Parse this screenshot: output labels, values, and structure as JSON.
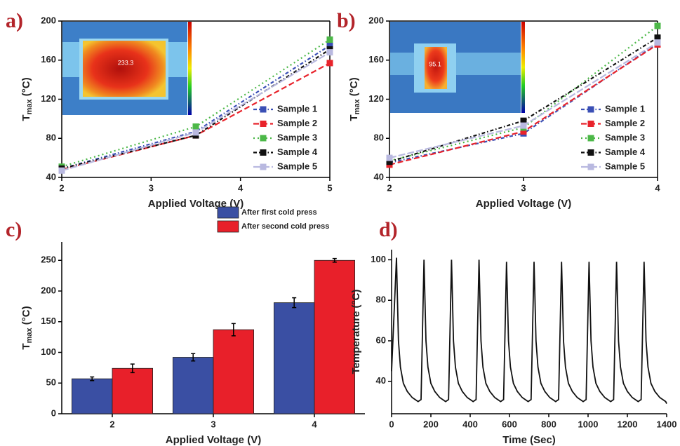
{
  "chart_data": [
    {
      "type": "line",
      "panel": "a)",
      "xlabel": "Applied Voltage (V)",
      "ylabel": {
        "main": "T",
        "sub": "max",
        "unit": " (°C)"
      },
      "x": [
        2,
        3.5,
        5
      ],
      "xlim": [
        2,
        5
      ],
      "xticks": [
        2,
        3,
        4,
        5
      ],
      "ylim": [
        40,
        200
      ],
      "yticks": [
        40,
        80,
        120,
        160,
        200
      ],
      "frame": true,
      "markers": true,
      "legend": "lower right",
      "inset_label": "233.3",
      "series": [
        {
          "name": "Sample 1",
          "color": "#3a4fb5",
          "linestyle": "dashdot",
          "values": [
            49,
            87,
            175
          ]
        },
        {
          "name": "Sample 2",
          "color": "#e8232b",
          "linestyle": "dashed",
          "values": [
            48,
            83,
            157
          ]
        },
        {
          "name": "Sample 3",
          "color": "#4cb848",
          "linestyle": "dotted",
          "values": [
            51,
            92,
            181
          ]
        },
        {
          "name": "Sample 4",
          "color": "#111111",
          "linestyle": "dashdot",
          "values": [
            49,
            83,
            171
          ]
        },
        {
          "name": "Sample 5",
          "color": "#b9b9e0",
          "linestyle": "longdash",
          "values": [
            47,
            86,
            168
          ]
        }
      ]
    },
    {
      "type": "line",
      "panel": "b)",
      "xlabel": "Applied Voltage (V)",
      "ylabel": {
        "main": "T",
        "sub": "max",
        "unit": " (°C)"
      },
      "x": [
        2,
        3,
        4
      ],
      "xlim": [
        2,
        4
      ],
      "xticks": [
        2,
        3,
        4
      ],
      "ylim": [
        40,
        200
      ],
      "yticks": [
        40,
        80,
        120,
        160,
        200
      ],
      "frame": true,
      "markers": true,
      "legend": "lower right",
      "inset_label": "95.1",
      "series": [
        {
          "name": "Sample 1",
          "color": "#3a4fb5",
          "linestyle": "dashdot",
          "values": [
            55,
            85,
            177
          ]
        },
        {
          "name": "Sample 2",
          "color": "#e8232b",
          "linestyle": "dashed",
          "values": [
            53,
            87,
            176
          ]
        },
        {
          "name": "Sample 3",
          "color": "#4cb848",
          "linestyle": "dotted",
          "values": [
            57,
            91,
            195
          ]
        },
        {
          "name": "Sample 4",
          "color": "#111111",
          "linestyle": "dashdot",
          "values": [
            56,
            98,
            183
          ]
        },
        {
          "name": "Sample 5",
          "color": "#b9b9e0",
          "linestyle": "longdash",
          "values": [
            60,
            93,
            178
          ]
        }
      ]
    },
    {
      "type": "bar",
      "panel": "c)",
      "xlabel": "Applied Voltage (V)",
      "ylabel": {
        "main": "T",
        "sub": "max",
        "unit": " (°C)"
      },
      "categories": [
        "2",
        "3",
        "4"
      ],
      "ylim": [
        0,
        280
      ],
      "yticks": [
        0,
        50,
        100,
        150,
        200,
        250
      ],
      "frame": false,
      "legend": "top",
      "series": [
        {
          "name": "After first cold press",
          "color": "#3a4fa3",
          "values": [
            57,
            92,
            181
          ],
          "errors": [
            3,
            6,
            8
          ]
        },
        {
          "name": "After second cold press",
          "color": "#e8202a",
          "values": [
            74,
            137,
            250
          ],
          "errors": [
            7,
            10,
            3
          ]
        }
      ]
    },
    {
      "type": "line",
      "panel": "d)",
      "xlabel": "Time (Sec)",
      "ylabel": "Temperature (°C)",
      "xlim": [
        0,
        1400
      ],
      "xticks": [
        0,
        200,
        400,
        600,
        800,
        1000,
        1200,
        1400
      ],
      "ylim": [
        24,
        105
      ],
      "yticks": [
        40,
        60,
        80,
        100
      ],
      "frame": false,
      "markers": false,
      "color": "#111111",
      "x": [
        0,
        25,
        30,
        35,
        45,
        60,
        80,
        105,
        135,
        150,
        165,
        170,
        175,
        185,
        200,
        220,
        245,
        275,
        290,
        305,
        310,
        315,
        325,
        340,
        360,
        385,
        415,
        430,
        445,
        450,
        455,
        465,
        480,
        500,
        525,
        555,
        570,
        585,
        590,
        595,
        605,
        620,
        640,
        665,
        695,
        710,
        725,
        730,
        735,
        745,
        760,
        780,
        805,
        835,
        850,
        865,
        870,
        875,
        885,
        900,
        920,
        945,
        975,
        990,
        1005,
        1010,
        1015,
        1025,
        1040,
        1060,
        1085,
        1115,
        1130,
        1145,
        1150,
        1155,
        1165,
        1180,
        1200,
        1225,
        1255,
        1270,
        1285,
        1290,
        1295,
        1305,
        1320,
        1340,
        1365,
        1395,
        1400
      ],
      "values": [
        45,
        101,
        80,
        60,
        47,
        39,
        35,
        32,
        30,
        31,
        100,
        80,
        60,
        47,
        39,
        35,
        32,
        30,
        31,
        100,
        80,
        60,
        47,
        39,
        35,
        32,
        30,
        31,
        100,
        80,
        60,
        47,
        39,
        35,
        32,
        30,
        31,
        99,
        80,
        60,
        47,
        39,
        35,
        32,
        30,
        31,
        99,
        80,
        60,
        47,
        39,
        35,
        32,
        30,
        31,
        99,
        80,
        60,
        47,
        39,
        35,
        32,
        30,
        31,
        99,
        80,
        60,
        47,
        39,
        35,
        32,
        30,
        31,
        99,
        80,
        60,
        47,
        39,
        35,
        32,
        30,
        31,
        99,
        80,
        60,
        47,
        39,
        35,
        32,
        30,
        29
      ]
    }
  ]
}
